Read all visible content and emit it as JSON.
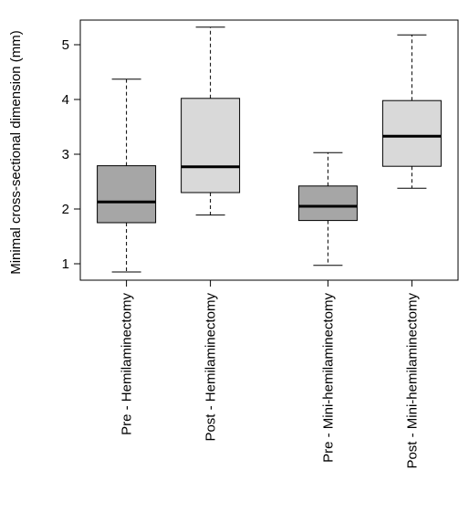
{
  "chart_data": {
    "type": "boxplot",
    "title": "",
    "xlabel": "",
    "ylabel": "Minimal cross-sectional dimension (mm)",
    "ylim": [
      0.7,
      5.45
    ],
    "yticks": [
      1,
      2,
      3,
      4,
      5
    ],
    "grid": false,
    "categories": [
      "Pre - Hemilaminectomy",
      "Post - Hemilaminectomy",
      "Pre - Mini-hemilaminectomy",
      "Post - Mini-hemilaminectomy"
    ],
    "positions": [
      1,
      2,
      3.4,
      4.4
    ],
    "xlim": [
      0.45,
      4.95
    ],
    "boxes": [
      {
        "whisker_low": 0.85,
        "q1": 1.75,
        "median": 2.13,
        "q3": 2.79,
        "whisker_high": 4.37,
        "fill": "#a6a6a6"
      },
      {
        "whisker_low": 1.89,
        "q1": 2.3,
        "median": 2.77,
        "q3": 4.02,
        "whisker_high": 5.32,
        "fill": "#d9d9d9"
      },
      {
        "whisker_low": 0.97,
        "q1": 1.79,
        "median": 2.05,
        "q3": 2.42,
        "whisker_high": 3.03,
        "fill": "#a6a6a6"
      },
      {
        "whisker_low": 2.38,
        "q1": 2.78,
        "median": 3.33,
        "q3": 3.98,
        "whisker_high": 5.18,
        "fill": "#d9d9d9"
      }
    ]
  }
}
